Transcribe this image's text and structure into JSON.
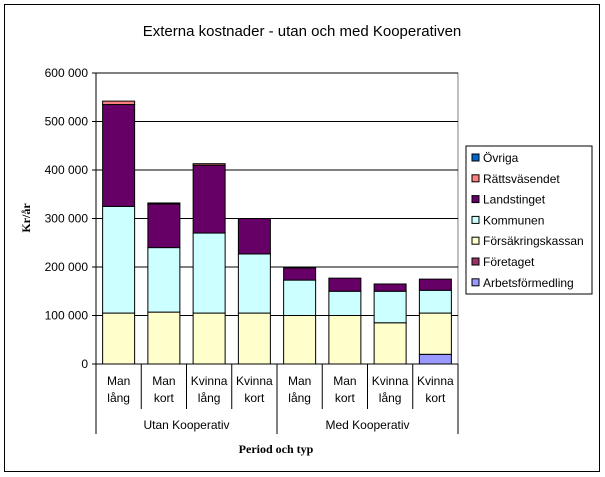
{
  "chart_data": {
    "type": "bar",
    "stacked": true,
    "title": "Externa kostnader - utan och med Kooperativen",
    "xlabel": "Period och typ",
    "ylabel": "Kr/år",
    "ylim": [
      0,
      600000
    ],
    "yticks": [
      "0",
      "100 000",
      "200 000",
      "300 000",
      "400 000",
      "500 000",
      "600 000"
    ],
    "ytick_values": [
      0,
      100000,
      200000,
      300000,
      400000,
      500000,
      600000
    ],
    "grid": true,
    "legend_position": "right",
    "categories": [
      [
        "Man",
        "lång"
      ],
      [
        "Man",
        "kort"
      ],
      [
        "Kvinna",
        "lång"
      ],
      [
        "Kvinna",
        "kort"
      ],
      [
        "Man",
        "lång"
      ],
      [
        "Man",
        "kort"
      ],
      [
        "Kvinna",
        "lång"
      ],
      [
        "Kvinna",
        "kort"
      ]
    ],
    "groups": [
      {
        "label": "Utan Kooperativ",
        "count": 4
      },
      {
        "label": "Med Kooperativ",
        "count": 4
      }
    ],
    "series": [
      {
        "name": "Arbetsförmedling",
        "color": "#9999ff",
        "values": [
          0,
          0,
          0,
          0,
          0,
          0,
          0,
          20000
        ]
      },
      {
        "name": "Företaget",
        "color": "#993366",
        "values": [
          0,
          0,
          0,
          0,
          0,
          0,
          0,
          0
        ]
      },
      {
        "name": "Försäkringskassan",
        "color": "#ffffcc",
        "values": [
          105000,
          107000,
          105000,
          105000,
          100000,
          100000,
          85000,
          85000
        ]
      },
      {
        "name": "Kommunen",
        "color": "#ccffff",
        "values": [
          220000,
          133000,
          165000,
          122000,
          73000,
          50000,
          65000,
          47000
        ]
      },
      {
        "name": "Landstinget",
        "color": "#660066",
        "values": [
          210000,
          90000,
          140000,
          73000,
          25000,
          27000,
          15000,
          23000
        ]
      },
      {
        "name": "Rättsväsendet",
        "color": "#ff8080",
        "values": [
          7000,
          0,
          3000,
          0,
          0,
          0,
          0,
          0
        ]
      },
      {
        "name": "Övriga",
        "color": "#0066cc",
        "values": [
          0,
          2000,
          0,
          0,
          0,
          0,
          0,
          0
        ]
      }
    ],
    "legend_order": [
      "Övriga",
      "Rättsväsendet",
      "Landstinget",
      "Kommunen",
      "Försäkringskassan",
      "Företaget",
      "Arbetsförmedling"
    ]
  }
}
